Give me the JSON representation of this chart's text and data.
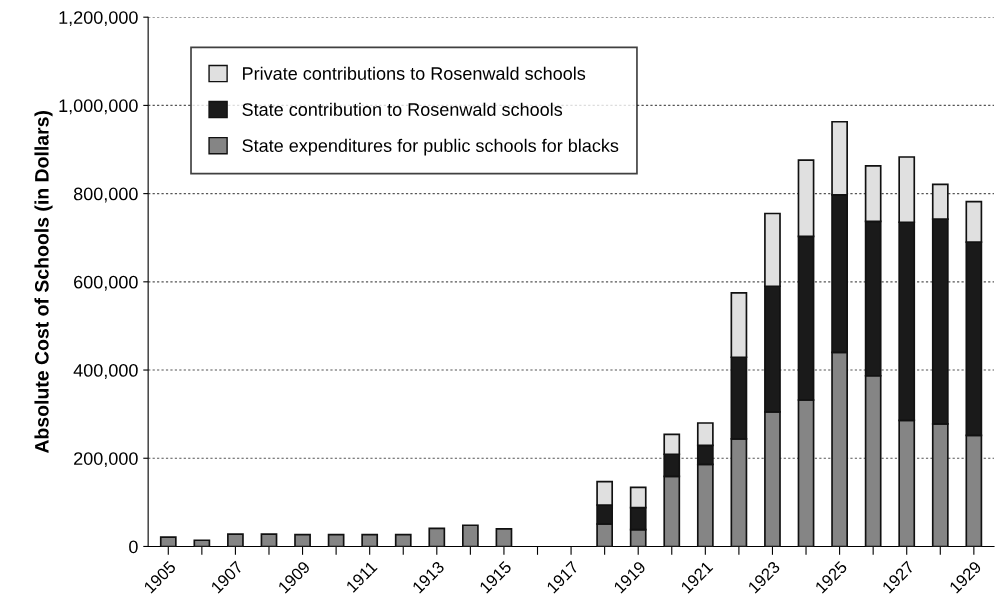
{
  "chart_data": {
    "type": "bar",
    "stacked": true,
    "ylabel": "Absolute Cost of Schools (in Dollars)",
    "categories": [
      "1905",
      null,
      "1907",
      null,
      "1909",
      null,
      "1911",
      null,
      "1913",
      null,
      "1915",
      null,
      "1917",
      null,
      "1919",
      null,
      "1921",
      null,
      "1923",
      null,
      "1925",
      null,
      "1927",
      null,
      "1929"
    ],
    "series": [
      {
        "name": "State expenditures for public schools for blacks",
        "color": "#858585",
        "values": [
          21000,
          14000,
          28000,
          28000,
          27000,
          27000,
          27000,
          27000,
          41000,
          48000,
          40000,
          null,
          null,
          51000,
          38000,
          159000,
          186000,
          244000,
          305000,
          332000,
          440000,
          387000,
          286000,
          278000,
          252000
        ]
      },
      {
        "name": "State contribution to Rosenwald schools",
        "color": "#1a1a1a",
        "values": [
          null,
          null,
          null,
          null,
          null,
          null,
          null,
          null,
          null,
          null,
          null,
          null,
          null,
          43000,
          50000,
          50000,
          43000,
          185000,
          285000,
          371000,
          357000,
          350000,
          449000,
          464000,
          438000
        ]
      },
      {
        "name": "Private contributions to Rosenwald schools",
        "color": "#e0e0e0",
        "values": [
          null,
          null,
          null,
          null,
          null,
          null,
          null,
          null,
          null,
          null,
          null,
          null,
          null,
          53000,
          46000,
          45000,
          51000,
          146000,
          165000,
          173000,
          166000,
          126000,
          148000,
          79000,
          92000
        ]
      }
    ],
    "ylim": [
      0,
      1200000
    ],
    "yticks": [
      0,
      {
        "value": 200000,
        "label": "200,000"
      },
      {
        "value": 400000,
        "label": "400,000"
      },
      {
        "value": 600000,
        "label": "600,000"
      },
      {
        "value": 800000,
        "label": "800,000"
      },
      {
        "value": 1000000,
        "label": "1,000,000"
      },
      {
        "value": 1200000,
        "label": "1,200,000"
      }
    ],
    "grid": "y",
    "legend": "top left"
  }
}
